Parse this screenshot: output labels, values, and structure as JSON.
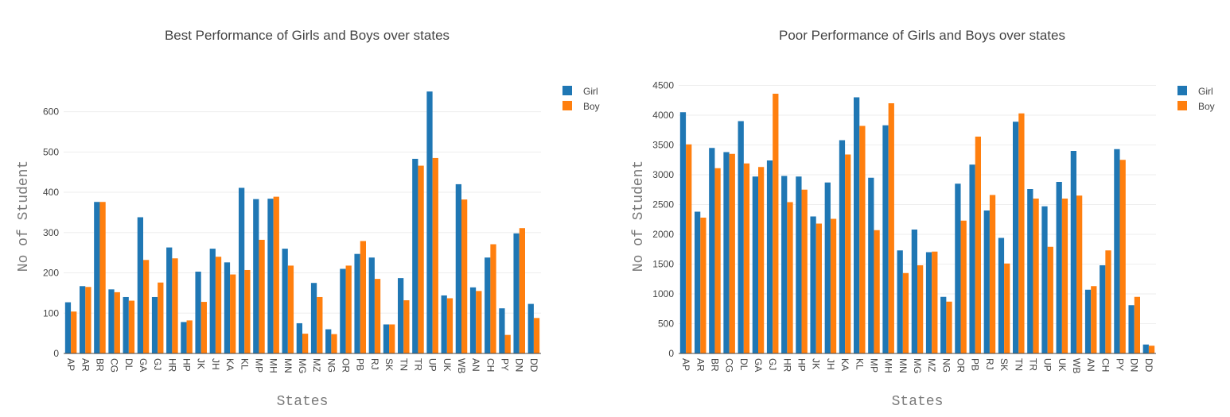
{
  "chart_data": [
    {
      "type": "bar",
      "title": "Best Performance of Girls and Boys over states",
      "xlabel": "States",
      "ylabel": "No of Student",
      "ylim": [
        0,
        680
      ],
      "yticks": [
        0,
        100,
        200,
        300,
        400,
        500,
        600
      ],
      "grid": true,
      "legend": "top-right",
      "categories": [
        "AP",
        "AR",
        "BR",
        "CG",
        "DL",
        "GA",
        "GJ",
        "HR",
        "HP",
        "JK",
        "JH",
        "KA",
        "KL",
        "MP",
        "MH",
        "MN",
        "MG",
        "MZ",
        "NG",
        "OR",
        "PB",
        "RJ",
        "SK",
        "TN",
        "TR",
        "UP",
        "UK",
        "WB",
        "AN",
        "CH",
        "PY",
        "DN",
        "DD"
      ],
      "series": [
        {
          "name": "Girl",
          "color": "#1f77b4",
          "values": [
            127,
            167,
            376,
            159,
            140,
            338,
            140,
            263,
            78,
            203,
            260,
            226,
            411,
            383,
            384,
            260,
            75,
            175,
            60,
            210,
            247,
            238,
            72,
            187,
            483,
            650,
            144,
            420,
            164,
            238,
            112,
            298,
            123
          ]
        },
        {
          "name": "Boy",
          "color": "#ff7f0e",
          "values": [
            104,
            165,
            376,
            152,
            131,
            232,
            176,
            236,
            82,
            128,
            240,
            196,
            207,
            282,
            389,
            218,
            49,
            140,
            48,
            218,
            279,
            185,
            72,
            132,
            466,
            485,
            137,
            382,
            155,
            271,
            46,
            311,
            88
          ]
        }
      ]
    },
    {
      "type": "bar",
      "title": "Poor Performance of Girls and Boys over states",
      "xlabel": "States",
      "ylabel": "No of Student",
      "ylim": [
        0,
        4600
      ],
      "yticks": [
        0,
        500,
        1000,
        1500,
        2000,
        2500,
        3000,
        3500,
        4000,
        4500
      ],
      "grid": true,
      "legend": "top-right",
      "categories": [
        "AP",
        "AR",
        "BR",
        "CG",
        "DL",
        "GA",
        "GJ",
        "HR",
        "HP",
        "JK",
        "JH",
        "KA",
        "KL",
        "MP",
        "MH",
        "MN",
        "MG",
        "MZ",
        "NG",
        "OR",
        "PB",
        "RJ",
        "SK",
        "TN",
        "TR",
        "UP",
        "UK",
        "WB",
        "AN",
        "CH",
        "PY",
        "DN",
        "DD"
      ],
      "series": [
        {
          "name": "Girl",
          "color": "#1f77b4",
          "values": [
            4050,
            2380,
            3450,
            3380,
            3900,
            2970,
            3240,
            2980,
            2970,
            2300,
            2870,
            3580,
            4300,
            2950,
            3830,
            1730,
            2080,
            1700,
            950,
            2850,
            3170,
            2400,
            1940,
            3890,
            2760,
            2470,
            2880,
            3400,
            1070,
            1480,
            3430,
            810,
            150
          ]
        },
        {
          "name": "Boy",
          "color": "#ff7f0e",
          "values": [
            3510,
            2280,
            3110,
            3350,
            3190,
            3130,
            4360,
            2540,
            2750,
            2180,
            2260,
            3340,
            3820,
            2070,
            4200,
            1350,
            1480,
            1710,
            870,
            2230,
            3640,
            2660,
            1510,
            4030,
            2600,
            1790,
            2600,
            2650,
            1130,
            1730,
            3250,
            950,
            130
          ]
        }
      ]
    }
  ]
}
